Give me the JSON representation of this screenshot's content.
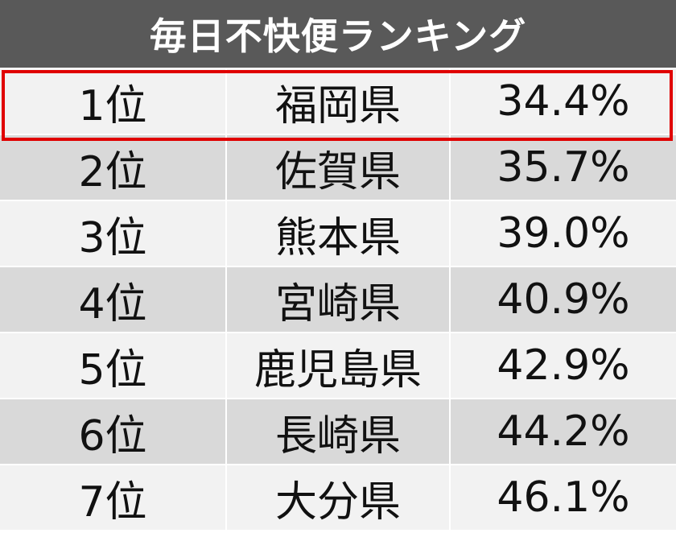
{
  "table": {
    "title": "毎日不快便ランキング",
    "rows": [
      [
        "1位",
        "福岡県",
        "34.4%"
      ],
      [
        "2位",
        "佐賀県",
        "35.7%"
      ],
      [
        "3位",
        "熊本県",
        "39.0%"
      ],
      [
        "4位",
        "宮崎県",
        "40.9%"
      ],
      [
        "5位",
        "鹿児島県",
        "42.9%"
      ],
      [
        "6位",
        "長崎県",
        "44.2%"
      ],
      [
        "7位",
        "大分県",
        "46.1%"
      ]
    ]
  }
}
